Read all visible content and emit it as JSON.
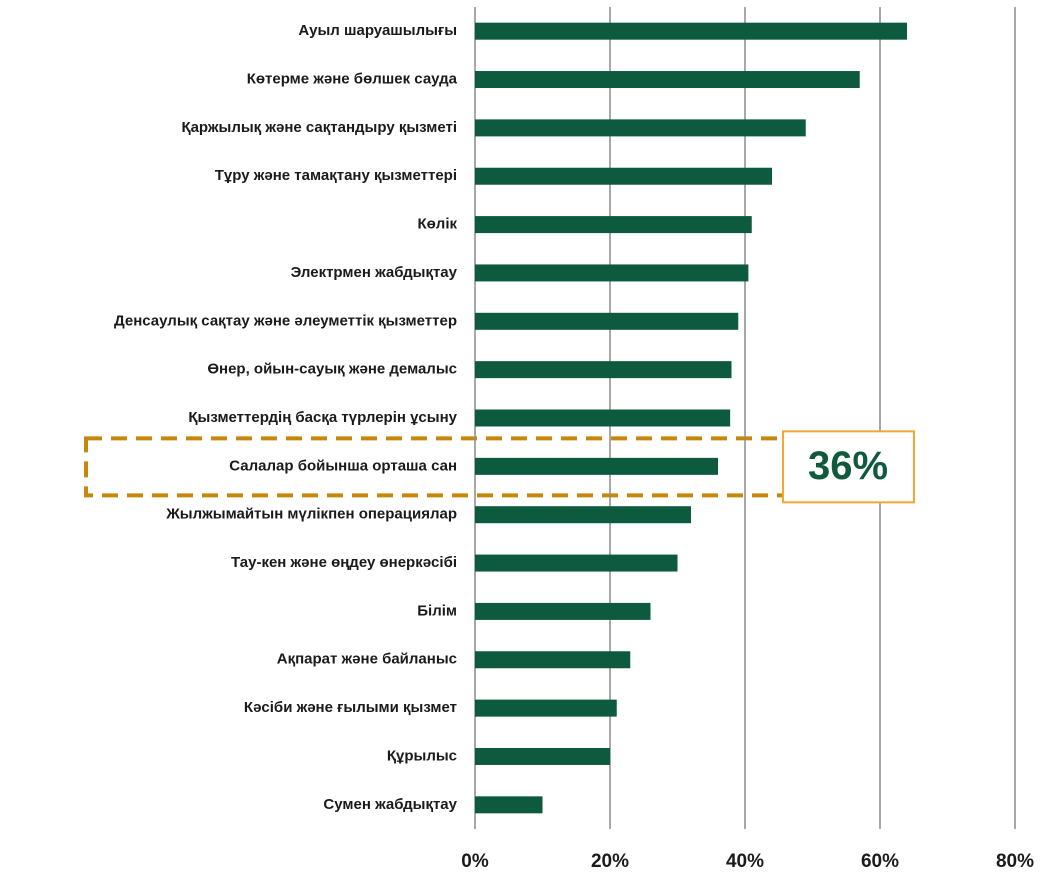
{
  "chart_data": {
    "type": "barh",
    "categories": [
      "Ауыл шаруашылығы",
      "Көтерме және бөлшек сауда",
      "Қаржылық және сақтандыру қызметі",
      "Тұру және тамақтану қызметтері",
      "Көлік",
      "Электрмен жабдықтау",
      "Денсаулық сақтау және әлеуметтік қызметтер",
      "Өнер, ойын-сауық және демалыс",
      "Қызметтердің басқа түрлерін ұсыну",
      "Салалар бойынша орташа сан",
      "Жылжымайтын мүлікпен операциялар",
      "Тау-кен және өңдеу өнеркәсібі",
      "Білім",
      "Ақпарат және байланыс",
      "Кәсіби және ғылыми қызмет",
      "Құрылыс",
      "Сумен жабдықтау"
    ],
    "values": [
      64,
      57,
      49,
      44,
      41,
      40.5,
      39,
      38,
      37.8,
      36,
      32,
      30,
      26,
      23,
      21,
      20,
      10
    ],
    "color": "#0e5a3e",
    "xlim": [
      0,
      80
    ],
    "xticks": [
      {
        "value": 0,
        "label": "0%"
      },
      {
        "value": 20,
        "label": "20%"
      },
      {
        "value": 40,
        "label": "40%"
      },
      {
        "value": 60,
        "label": "60%"
      },
      {
        "value": 80,
        "label": "80%"
      }
    ],
    "grid": true,
    "annotation": "36%"
  }
}
